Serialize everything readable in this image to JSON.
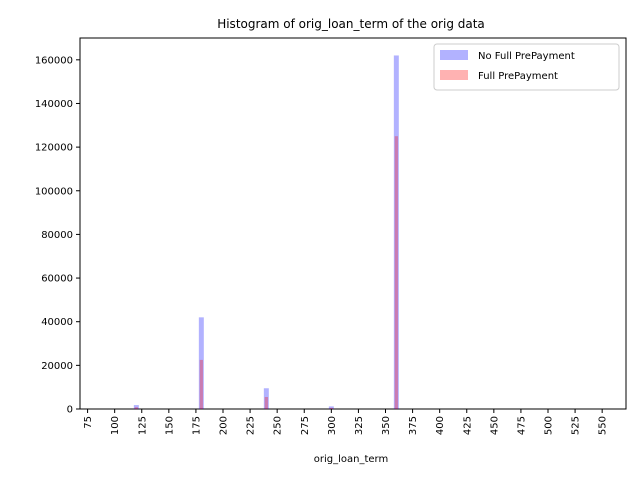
{
  "chart_data": {
    "type": "bar",
    "title": "Histogram of orig_loan_term of the orig data",
    "xlabel": "orig_loan_term",
    "ylabel": "",
    "xlim": [
      68,
      572
    ],
    "ylim": [
      0,
      170000
    ],
    "xticks": [
      75,
      100,
      125,
      150,
      175,
      200,
      225,
      250,
      275,
      300,
      325,
      350,
      375,
      400,
      425,
      450,
      475,
      500,
      525,
      550
    ],
    "yticks": [
      0,
      20000,
      40000,
      60000,
      80000,
      100000,
      120000,
      140000,
      160000
    ],
    "bin_width": 4.6,
    "grid": false,
    "legend_position": "upper-right",
    "series": [
      {
        "name": "No Full PrePayment",
        "color": "#0000ff",
        "alpha": 0.3,
        "x": [
          120,
          180,
          240,
          300,
          360
        ],
        "values": [
          1800,
          42000,
          9500,
          1200,
          162000
        ]
      },
      {
        "name": "Full PrePayment",
        "color": "#ff0000",
        "alpha": 0.3,
        "x": [
          120,
          180,
          240,
          300,
          360
        ],
        "values": [
          800,
          22500,
          5500,
          500,
          125000
        ]
      }
    ]
  }
}
